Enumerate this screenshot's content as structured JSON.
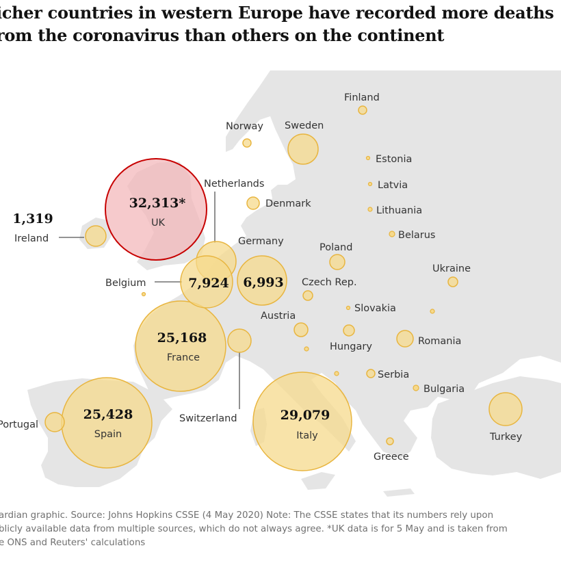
{
  "headline": {
    "line1": "icher countries in western Europe have recorded more deaths",
    "line2": "rom the coronavirus than others on the continent"
  },
  "source": {
    "line1": "ardian graphic. Source: Johns Hopkins CSSE (4 May 2020) Note: The CSSE states that its numbers rely upon",
    "line2": "blicly available data from multiple sources, which do not always agree. *UK data is for 5 May and is taken from",
    "line3": "e ONS and Reuters' calculations"
  },
  "colors": {
    "land": "#e5e5e5",
    "sea": "#ffffff",
    "bubble_fill": "#f6d98c",
    "bubble_stroke": "#e8b53f",
    "uk_fill": "#f2b5b8",
    "uk_stroke": "#c70000",
    "label": "#333333",
    "value": "#121212",
    "leader": "#555555",
    "caption": "#707070"
  },
  "countries": [
    {
      "name": "UK",
      "value": "32,313*",
      "highlight": true
    },
    {
      "name": "Italy",
      "value": "29,079"
    },
    {
      "name": "Spain",
      "value": "25,428"
    },
    {
      "name": "France",
      "value": "25,168"
    },
    {
      "name": "Belgium",
      "value": "7,924"
    },
    {
      "name": "Germany",
      "value": "6,993"
    },
    {
      "name": "Ireland",
      "value": "1,319"
    },
    {
      "name": "Netherlands",
      "value": ""
    },
    {
      "name": "Switzerland",
      "value": ""
    },
    {
      "name": "Portugal",
      "value": ""
    },
    {
      "name": "Sweden",
      "value": ""
    },
    {
      "name": "Norway",
      "value": ""
    },
    {
      "name": "Finland",
      "value": ""
    },
    {
      "name": "Denmark",
      "value": ""
    },
    {
      "name": "Estonia",
      "value": ""
    },
    {
      "name": "Latvia",
      "value": ""
    },
    {
      "name": "Lithuania",
      "value": ""
    },
    {
      "name": "Belarus",
      "value": ""
    },
    {
      "name": "Poland",
      "value": ""
    },
    {
      "name": "Ukraine",
      "value": ""
    },
    {
      "name": "Czech Rep.",
      "value": ""
    },
    {
      "name": "Slovakia",
      "value": ""
    },
    {
      "name": "Austria",
      "value": ""
    },
    {
      "name": "Hungary",
      "value": ""
    },
    {
      "name": "Romania",
      "value": ""
    },
    {
      "name": "Serbia",
      "value": ""
    },
    {
      "name": "Bulgaria",
      "value": ""
    },
    {
      "name": "Turkey",
      "value": ""
    },
    {
      "name": "Greece",
      "value": ""
    }
  ]
}
